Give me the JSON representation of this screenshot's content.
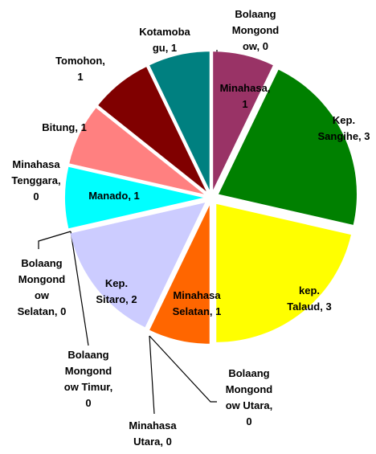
{
  "chart_data": {
    "type": "pie",
    "categories": [
      "Bolaang Mongondow, 0",
      "Minahasa, 1",
      "Kep. Sangihe, 3",
      "kep. Talaud, 3",
      "Minahasa Selatan, 1",
      "Minahasa Utara, 0",
      "Bolaang Mongondow Utara, 0",
      "Bolaang Mongondow Timur, 0",
      "Kep. Sitaro, 2",
      "Bolaang Mongondow Selatan, 0",
      "Minahasa Tenggara, 0",
      "Manado, 1",
      "Bitung, 1",
      "Tomohon, 1",
      "Kotamobagu, 1"
    ],
    "values": [
      0,
      1,
      3,
      3,
      1,
      0,
      0,
      0,
      2,
      0,
      0,
      1,
      1,
      1,
      1
    ],
    "colors": [
      null,
      "#993366",
      "#008000",
      "#ffff00",
      "#ff6600",
      null,
      null,
      null,
      "#ccccff",
      null,
      null,
      "#00ffff",
      "#ff8080",
      "#800000",
      "#008080"
    ]
  }
}
